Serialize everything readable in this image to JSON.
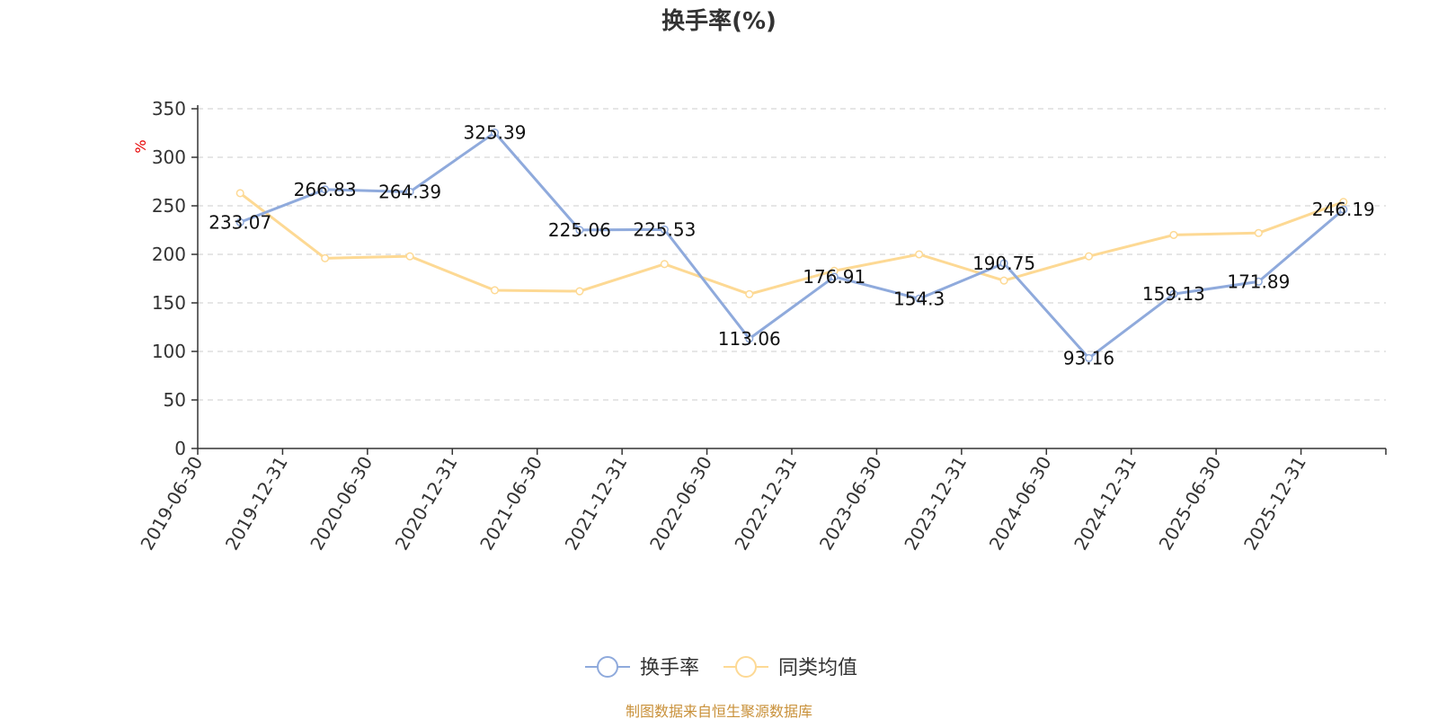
{
  "chart_data": {
    "type": "line",
    "title": "换手率(%)",
    "ylabel": "%",
    "ylim": [
      0,
      350
    ],
    "yticks": [
      0,
      50,
      100,
      150,
      200,
      250,
      300,
      350
    ],
    "grid": true,
    "legend_position": "bottom-center",
    "categories": [
      "2019-06-30",
      "2019-12-31",
      "2020-06-30",
      "2020-12-31",
      "2021-06-30",
      "2021-12-31",
      "2022-06-30",
      "2022-12-31",
      "2023-06-30",
      "2023-12-31",
      "2024-06-30",
      "2024-12-31",
      "2025-06-30",
      "2025-12-31"
    ],
    "series": [
      {
        "name": "换手率",
        "color": "#8faadc",
        "values": [
          233.07,
          266.83,
          264.39,
          325.39,
          225.06,
          225.53,
          113.06,
          176.91,
          154.3,
          190.75,
          93.16,
          159.13,
          171.89,
          246.19
        ],
        "labels": [
          "233.07",
          "266.83",
          "264.39",
          "325.39",
          "225.06",
          "225.53",
          "113.06",
          "176.91",
          "154.3",
          "190.75",
          "93.16",
          "159.13",
          "171.89",
          "246.19"
        ]
      },
      {
        "name": "同类均值",
        "color": "#fdd994",
        "values": [
          263,
          196,
          198,
          163,
          162,
          190,
          159,
          183,
          200,
          173,
          198,
          220,
          222,
          254
        ]
      }
    ],
    "source": "制图数据来自恒生聚源数据库"
  }
}
